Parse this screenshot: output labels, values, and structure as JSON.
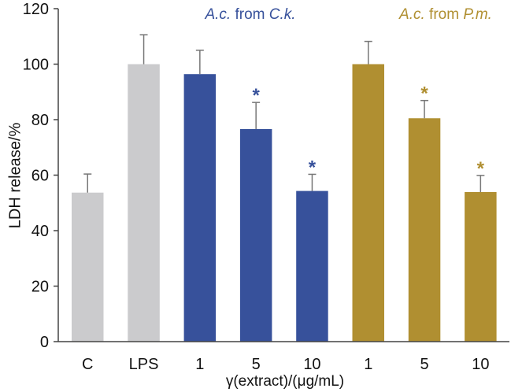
{
  "chart_data": {
    "type": "bar",
    "ylabel": "LDH release/%",
    "xlabel": "γ(extract)/(μg/mL)",
    "ylim": [
      0,
      120
    ],
    "yticks": [
      "0",
      "20",
      "40",
      "60",
      "80",
      "100",
      "120"
    ],
    "grid": false,
    "categories": [
      "C",
      "LPS",
      "1",
      "5",
      "10",
      "1",
      "5",
      "10"
    ],
    "values": [
      53.7,
      100,
      96.4,
      76.6,
      54.3,
      100,
      80.5,
      53.9
    ],
    "error_upper": [
      60.4,
      110.6,
      105,
      86.2,
      60.3,
      108.2,
      86.9,
      59.9
    ],
    "significant": [
      false,
      false,
      false,
      true,
      true,
      false,
      true,
      true
    ],
    "groups": [
      {
        "label_italic": "A.c.",
        "label_mid": " from ",
        "label_italic2": "C.k.",
        "color": "#37519b"
      },
      {
        "label_italic": "A.c.",
        "label_mid": " from ",
        "label_italic2": "P.m.",
        "color": "#b08f31"
      }
    ],
    "bar_colors": [
      "#cbcbcd",
      "#cbcbcd",
      "#37519b",
      "#37519b",
      "#37519b",
      "#b08f31",
      "#b08f31",
      "#b08f31"
    ],
    "annotation": "*"
  }
}
